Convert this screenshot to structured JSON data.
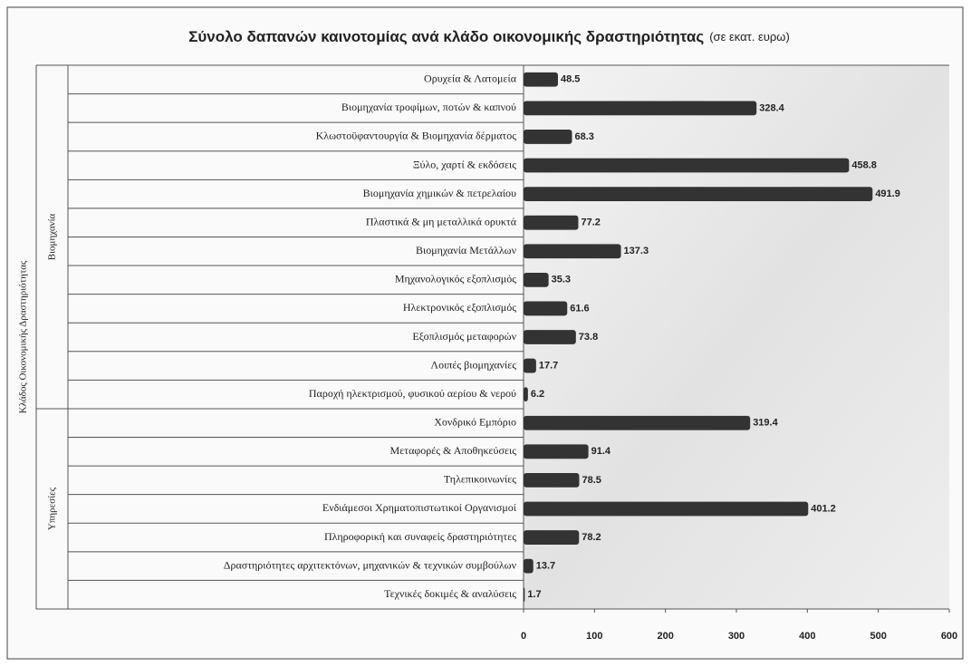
{
  "chart_data": {
    "type": "barh",
    "title": "Σύνολο δαπανών καινοτομίας ανά κλάδο οικονομικής δραστηριότητας",
    "subtitle": "(σε εκατ. ευρω)",
    "group_axis_label": "Κλάδος Οικονομικής Δραστηριότητας",
    "color": "#333333",
    "groups": [
      {
        "name": "Βιομηχανία",
        "categories": [
          "Ορυχεία & Λατομεία",
          "Βιομηχανία τροφίμων, ποτών & καπνού",
          "Κλωστοϋφαντουργία & Βιομηχανία δέρματος",
          "Ξύλο, χαρτί & εκδόσεις",
          "Βιομηχανία χημικών & πετρελαίου",
          "Πλαστικά & μη μεταλλικά ορυκτά",
          "Βιομηχανία Μετάλλων",
          "Μηχανολογικός εξοπλισμός",
          "Ηλεκτρονικός εξοπλισμός",
          "Εξοπλισμός μεταφορών",
          "Λοιπές βιομηχανίες",
          "Παροχή ηλεκτρισμού, φυσικού αερίου & νερού"
        ],
        "values": [
          48.5,
          328.4,
          68.3,
          458.8,
          491.9,
          77.2,
          137.3,
          35.3,
          61.6,
          73.8,
          17.7,
          6.2
        ]
      },
      {
        "name": "Υπηρεσίες",
        "categories": [
          "Χονδρικό Εμπόριο",
          "Μεταφορές & Αποθηκεύσεις",
          "Τηλεπικοινωνίες",
          "Ενδιάμεσοι Χρηματοπιστωτικοί Οργανισμοί",
          "Πληροφορική και συναφείς δραστηριότητες",
          "Δραστηριότητες αρχιτεκτόνων, μηχανικών & τεχνικών συμβούλων",
          "Τεχνικές δοκιμές & αναλύσεις"
        ],
        "values": [
          319.4,
          91.4,
          78.5,
          401.2,
          78.2,
          13.7,
          1.7
        ]
      }
    ],
    "xlim": [
      0,
      600
    ],
    "xticks": [
      0,
      100,
      200,
      300,
      400,
      500,
      600
    ]
  }
}
